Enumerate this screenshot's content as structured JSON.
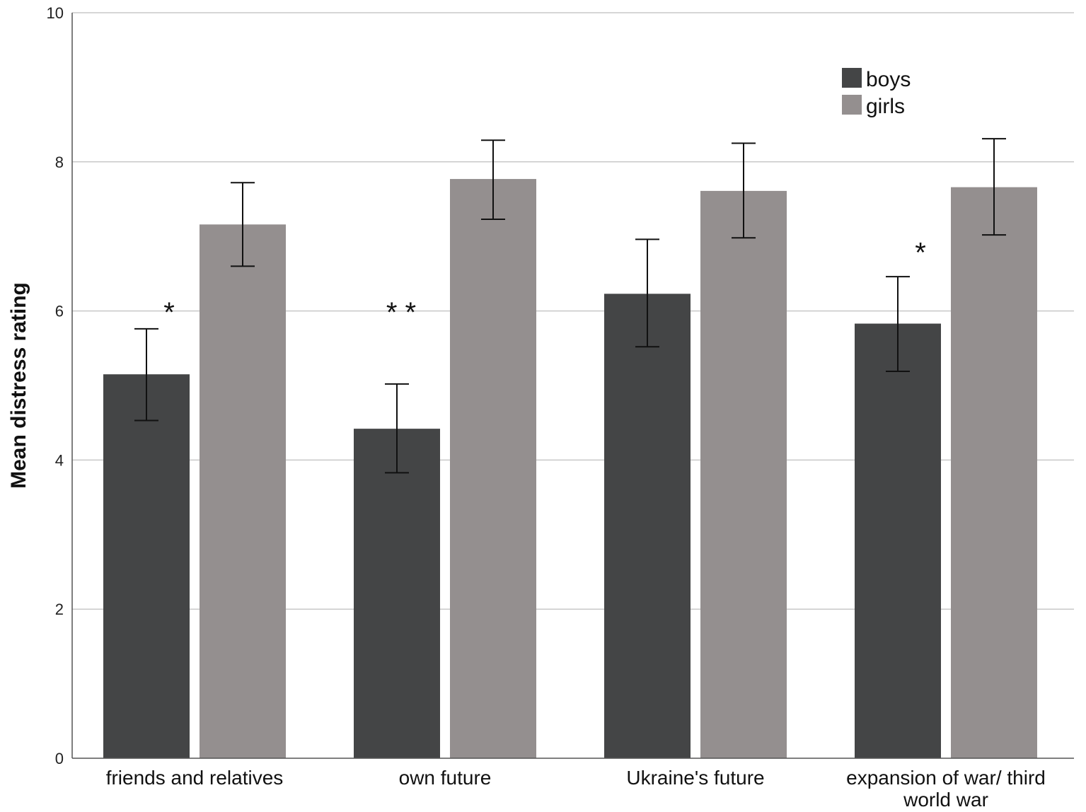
{
  "chart_data": {
    "type": "bar",
    "ylabel": "Mean distress rating",
    "ylim": [
      0,
      10
    ],
    "yticks": [
      "0",
      "2",
      "4",
      "6",
      "8",
      "10"
    ],
    "ytick_values": [
      0,
      2,
      4,
      6,
      8,
      10
    ],
    "grid": true,
    "legend_position": "top-right",
    "categories": [
      [
        "friends and relatives"
      ],
      [
        "own future"
      ],
      [
        "Ukraine's future"
      ],
      [
        "expansion of war/ third",
        "world war"
      ]
    ],
    "series": [
      {
        "name": "boys",
        "color": "#444546",
        "values": [
          5.15,
          4.42,
          6.23,
          5.83
        ],
        "error_low": [
          4.53,
          3.83,
          5.52,
          5.19
        ],
        "error_high": [
          5.76,
          5.02,
          6.96,
          6.46
        ]
      },
      {
        "name": "girls",
        "color": "#948f8f",
        "values": [
          7.16,
          7.77,
          7.61,
          7.66
        ],
        "error_low": [
          6.6,
          7.23,
          6.98,
          7.02
        ],
        "error_high": [
          7.72,
          8.29,
          8.25,
          8.31
        ]
      }
    ],
    "annotations": [
      {
        "category_index": 0,
        "text": "*",
        "y": 6.1
      },
      {
        "category_index": 1,
        "text": "**",
        "y": 6.1
      },
      {
        "category_index": 3,
        "text": "*",
        "y": 6.9
      }
    ]
  }
}
